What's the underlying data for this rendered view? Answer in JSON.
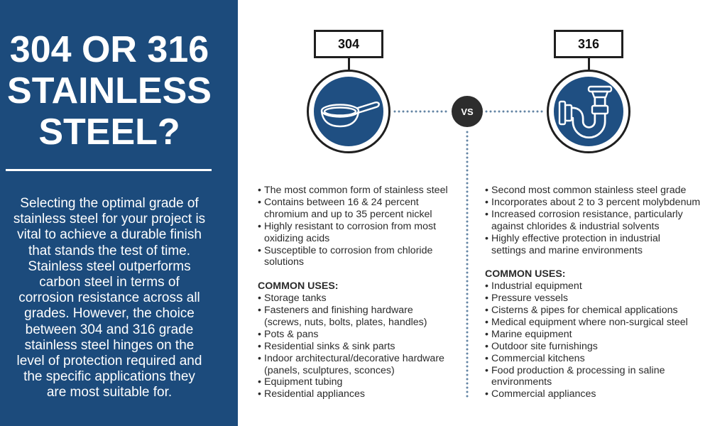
{
  "title": {
    "lines": [
      "304 OR 316",
      "STAINLESS",
      "STEEL?"
    ]
  },
  "intro": {
    "lines": [
      "Selecting the optimal grade of",
      "stainless steel for your project is",
      "vital to achieve a durable finish",
      "that stands the test of time.",
      "Stainless steel outperforms",
      "carbon steel in terms of",
      "corrosion resistance across all",
      "grades. However, the choice",
      "between 304 and 316 grade",
      "stainless steel hinges on the",
      "level of protection required and",
      "the specific applications they",
      "are most suitable for."
    ]
  },
  "comparison": {
    "vs_label": "VS",
    "grades": [
      {
        "label": "304",
        "icon": "frying-pan-icon",
        "properties": [
          "The most common form of stainless steel",
          "Contains between 16 & 24 percent\nchromium and up to 35 percent nickel",
          "Highly resistant to corrosion from most\noxidizing acids",
          "Susceptible to corrosion from chloride\nsolutions"
        ],
        "uses_heading": "COMMON USES:",
        "uses": [
          "Storage tanks",
          "Fasteners and finishing hardware\n(screws, nuts, bolts, plates, handles)",
          "Pots & pans",
          "Residential sinks & sink parts",
          "Indoor architectural/decorative hardware\n(panels, sculptures, sconces)",
          "Equipment tubing",
          "Residential appliances"
        ]
      },
      {
        "label": "316",
        "icon": "sink-drain-pipe-icon",
        "properties": [
          "Second most common stainless steel grade",
          "Incorporates about 2 to 3 percent molybdenum",
          "Increased corrosion resistance, particularly\nagainst chlorides & industrial solvents",
          "Highly effective protection in industrial\nsettings and marine environments"
        ],
        "uses_heading": "COMMON USES:",
        "uses": [
          "Industrial equipment",
          "Pressure vessels",
          "Cisterns & pipes for chemical applications",
          "Medical equipment where non-surgical steel",
          "Marine equipment",
          "Outdoor site furnishings",
          "Commercial kitchens",
          "Food production & processing in saline\nenvironments",
          "Commercial appliances"
        ]
      }
    ]
  },
  "colors": {
    "panel_blue": "#1c4b7c",
    "badge_blue": "#1f4f82",
    "text": "#2b2b2b",
    "outline": "#1f1f1f",
    "vs_circle": "#2d2d2d",
    "dotted_line": "#6384a4"
  }
}
